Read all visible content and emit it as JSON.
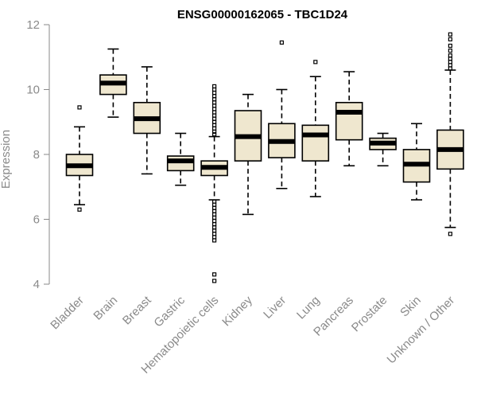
{
  "chart_data": {
    "type": "box",
    "title": "ENSG00000162065 - TBC1D24",
    "xlabel": "",
    "ylabel": "Expression",
    "ylim": [
      4,
      12
    ],
    "yticks": [
      4,
      6,
      8,
      10,
      12
    ],
    "categories": [
      "Bladder",
      "Brain",
      "Breast",
      "Gastric",
      "Hematopoietic cells",
      "Kidney",
      "Liver",
      "Lung",
      "Pancreas",
      "Prostate",
      "Skin",
      "Unknown / Other"
    ],
    "series": [
      {
        "category": "Bladder",
        "whisker_low": 6.45,
        "q1": 7.35,
        "median": 7.65,
        "q3": 8.0,
        "whisker_high": 8.85,
        "outliers": [
          9.45,
          6.3
        ]
      },
      {
        "category": "Brain",
        "whisker_low": 9.15,
        "q1": 9.85,
        "median": 10.2,
        "q3": 10.45,
        "whisker_high": 11.25,
        "outliers": []
      },
      {
        "category": "Breast",
        "whisker_low": 7.4,
        "q1": 8.65,
        "median": 9.1,
        "q3": 9.6,
        "whisker_high": 10.7,
        "outliers": []
      },
      {
        "category": "Gastric",
        "whisker_low": 7.05,
        "q1": 7.5,
        "median": 7.8,
        "q3": 7.95,
        "whisker_high": 8.65,
        "outliers": []
      },
      {
        "category": "Hematopoietic cells",
        "whisker_low": 6.6,
        "q1": 7.35,
        "median": 7.6,
        "q3": 7.8,
        "whisker_high": 8.55,
        "outliers": [
          10.1,
          10.0,
          9.9,
          9.8,
          9.7,
          9.6,
          9.5,
          9.4,
          9.3,
          9.2,
          9.1,
          9.0,
          8.9,
          8.8,
          8.7,
          8.62,
          6.55,
          6.45,
          6.35,
          6.25,
          6.15,
          6.05,
          5.95,
          5.85,
          5.75,
          5.65,
          5.55,
          5.45,
          5.35,
          4.3,
          4.1
        ]
      },
      {
        "category": "Kidney",
        "whisker_low": 6.15,
        "q1": 7.8,
        "median": 8.55,
        "q3": 9.35,
        "whisker_high": 9.85,
        "outliers": []
      },
      {
        "category": "Liver",
        "whisker_low": 6.95,
        "q1": 7.9,
        "median": 8.4,
        "q3": 8.95,
        "whisker_high": 10.0,
        "outliers": [
          11.45
        ]
      },
      {
        "category": "Lung",
        "whisker_low": 6.7,
        "q1": 7.8,
        "median": 8.6,
        "q3": 8.9,
        "whisker_high": 10.4,
        "outliers": [
          10.85
        ]
      },
      {
        "category": "Pancreas",
        "whisker_low": 7.65,
        "q1": 8.45,
        "median": 9.3,
        "q3": 9.6,
        "whisker_high": 10.55,
        "outliers": []
      },
      {
        "category": "Prostate",
        "whisker_low": 7.65,
        "q1": 8.15,
        "median": 8.35,
        "q3": 8.5,
        "whisker_high": 8.65,
        "outliers": []
      },
      {
        "category": "Skin",
        "whisker_low": 6.6,
        "q1": 7.15,
        "median": 7.7,
        "q3": 8.15,
        "whisker_high": 8.95,
        "outliers": []
      },
      {
        "category": "Unknown / Other",
        "whisker_low": 5.75,
        "q1": 7.55,
        "median": 8.15,
        "q3": 8.75,
        "whisker_high": 10.6,
        "outliers": [
          11.7,
          11.55,
          11.35,
          11.2,
          11.05,
          10.95,
          10.85,
          10.75,
          10.65,
          5.55
        ]
      }
    ],
    "box_fill": "#efe7cf",
    "axis_color": "#8a8a8a"
  }
}
